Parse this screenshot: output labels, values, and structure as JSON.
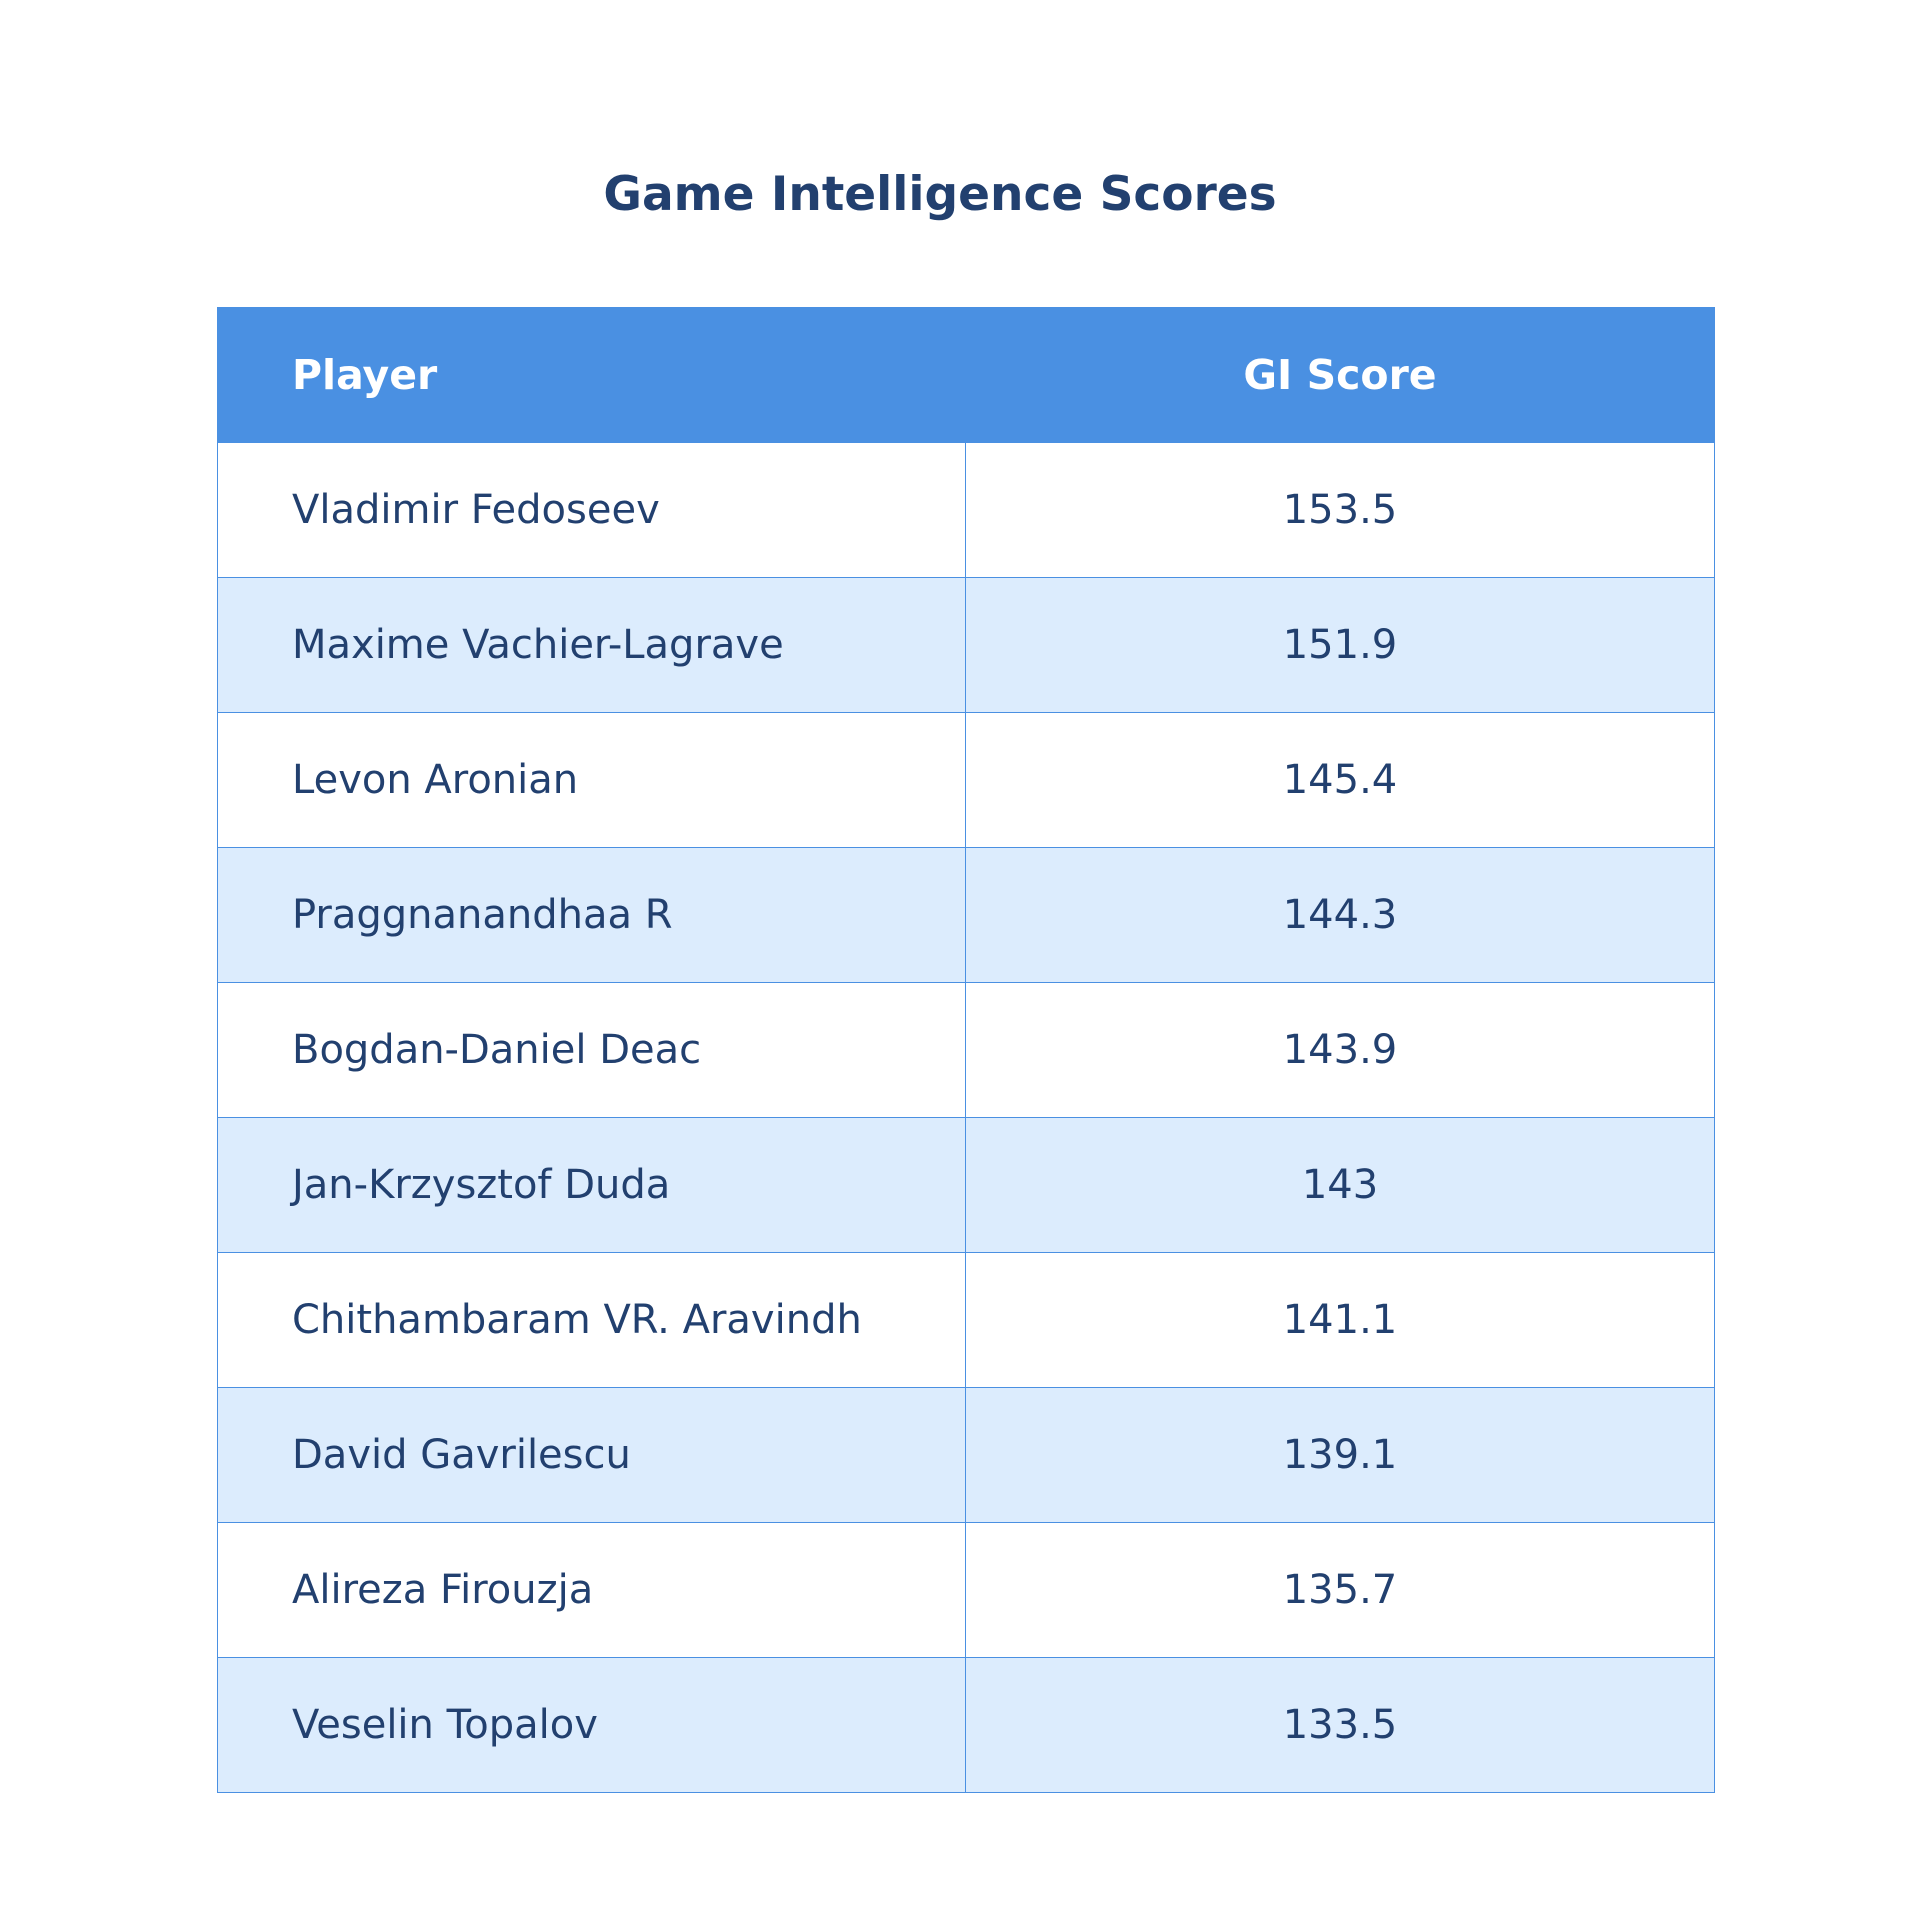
{
  "chart_data": {
    "type": "table",
    "title": "Game Intelligence Scores",
    "columns": [
      "Player",
      "GI Score"
    ],
    "rows": [
      {
        "player": "Vladimir Fedoseev",
        "score": "153.5"
      },
      {
        "player": "Maxime Vachier-Lagrave",
        "score": "151.9"
      },
      {
        "player": "Levon Aronian",
        "score": "145.4"
      },
      {
        "player": "Praggnanandhaa R",
        "score": "144.3"
      },
      {
        "player": "Bogdan-Daniel Deac",
        "score": "143.9"
      },
      {
        "player": "Jan-Krzysztof Duda",
        "score": "143"
      },
      {
        "player": "Chithambaram VR. Aravindh",
        "score": "141.1"
      },
      {
        "player": "David Gavrilescu",
        "score": "139.1"
      },
      {
        "player": "Alireza Firouzja",
        "score": "135.7"
      },
      {
        "player": "Veselin Topalov",
        "score": "133.5"
      }
    ]
  },
  "colors": {
    "header_bg": "#4a90e2",
    "header_text": "#ffffff",
    "text": "#22406f",
    "row_alt_bg": "#dcecfd",
    "border": "#4a90e2"
  }
}
